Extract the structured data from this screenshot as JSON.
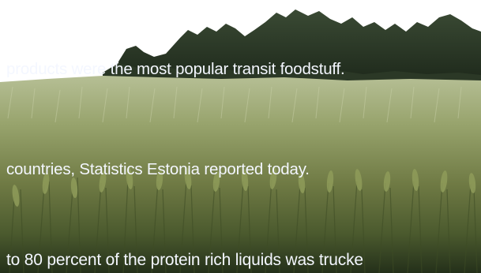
{
  "image": {
    "subject": "barley-field",
    "colors": {
      "sky": "#ffffff",
      "tree_line": "#2e3a2a",
      "field_light": "#a9b486",
      "field_mid": "#6f7a44",
      "field_dark": "#24301a",
      "caption_text": "#f4f7ff"
    }
  },
  "captions": [
    "products were the most popular transit foodstuff.",
    "countries, Statistics Estonia reported today.",
    "to 80 percent of the protein rich liquids was trucke"
  ]
}
